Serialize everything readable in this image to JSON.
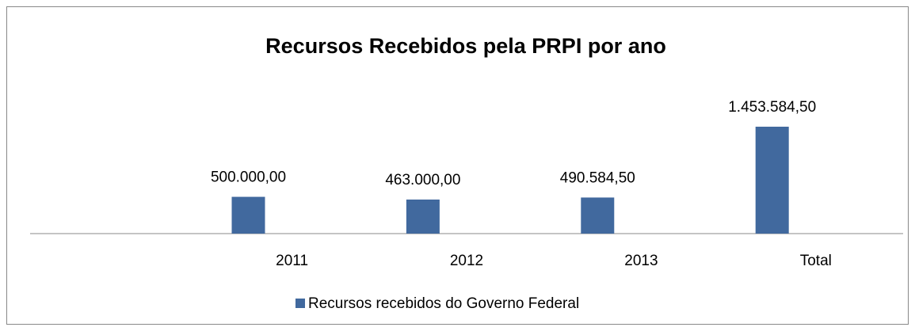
{
  "chart_data": {
    "type": "bar",
    "title": "Recursos Recebidos pela PRPI por ano",
    "categories": [
      "2011",
      "2012",
      "2013",
      "Total"
    ],
    "series": [
      {
        "name": "Recursos recebidos do Governo Federal",
        "color": "#41699e",
        "values": [
          500000,
          463000,
          490584.5,
          1453584.5
        ],
        "value_labels": [
          "500.000,00",
          "463.000,00",
          "490.584,50",
          "1.453.584,50"
        ]
      }
    ],
    "legend": "bottom"
  }
}
